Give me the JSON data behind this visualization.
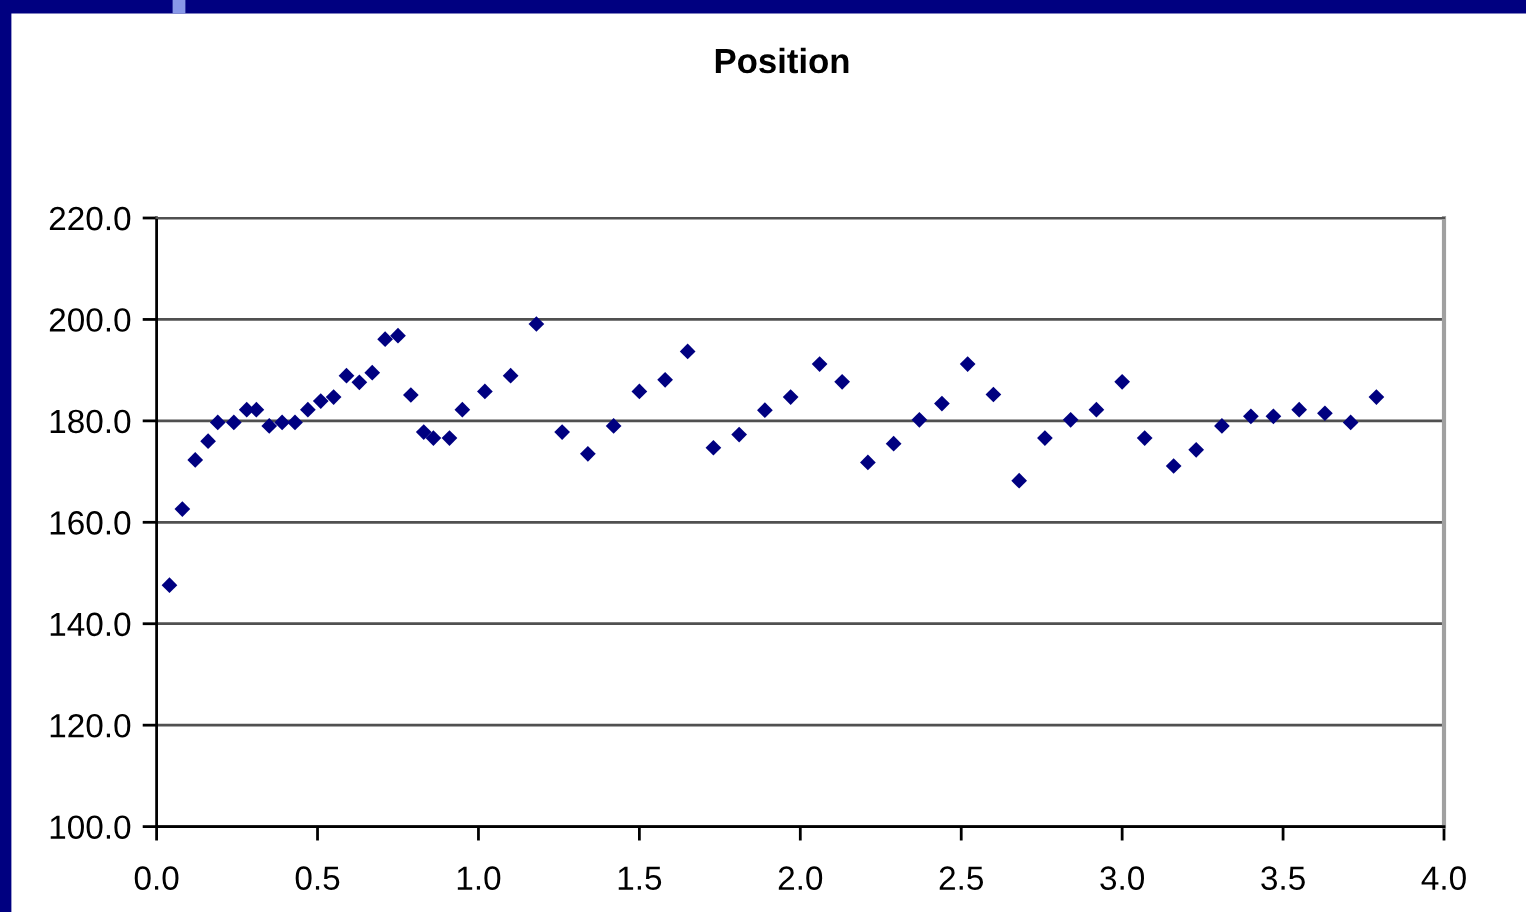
{
  "chart_data": {
    "type": "scatter",
    "title": "Position",
    "x": [
      0.04,
      0.08,
      0.12,
      0.16,
      0.19,
      0.24,
      0.28,
      0.31,
      0.35,
      0.39,
      0.43,
      0.47,
      0.51,
      0.55,
      0.59,
      0.63,
      0.67,
      0.71,
      0.75,
      0.79,
      0.83,
      0.86,
      0.91,
      0.95,
      1.02,
      1.1,
      1.18,
      1.26,
      1.34,
      1.42,
      1.5,
      1.58,
      1.65,
      1.73,
      1.81,
      1.89,
      1.97,
      2.06,
      2.13,
      2.21,
      2.29,
      2.37,
      2.44,
      2.52,
      2.6,
      2.68,
      2.76,
      2.84,
      2.92,
      3.0,
      3.07,
      3.16,
      3.23,
      3.31,
      3.4,
      3.47,
      3.55,
      3.63,
      3.71,
      3.79
    ],
    "series": [
      {
        "color": "#000080",
        "values": [
          147.6,
          162.6,
          172.3,
          176.0,
          179.7,
          179.7,
          182.2,
          182.2,
          179.0,
          179.7,
          179.7,
          182.2,
          183.9,
          184.7,
          188.9,
          187.6,
          189.5,
          196.1,
          196.8,
          185.1,
          177.8,
          176.6,
          176.6,
          182.2,
          185.8,
          188.9,
          199.1,
          177.8,
          173.5,
          179.0,
          185.8,
          188.1,
          193.7,
          174.7,
          177.3,
          182.1,
          184.7,
          191.2,
          187.7,
          171.8,
          175.5,
          180.2,
          183.4,
          191.2,
          185.2,
          168.2,
          176.6,
          180.2,
          182.2,
          187.7,
          176.6,
          171.1,
          174.3,
          179.0,
          180.9,
          180.9,
          182.2,
          181.5,
          179.7,
          184.7
        ]
      }
    ],
    "xlim": [
      0,
      4
    ],
    "xticks": [
      {
        "value": 0,
        "label": "0.0"
      },
      {
        "value": 0.5,
        "label": "0.5"
      },
      {
        "value": 1,
        "label": "1.0"
      },
      {
        "value": 1.5,
        "label": "1.5"
      },
      {
        "value": 2,
        "label": "2.0"
      },
      {
        "value": 2.5,
        "label": "2.5"
      },
      {
        "value": 3,
        "label": "3.0"
      },
      {
        "value": 3.5,
        "label": "3.5"
      },
      {
        "value": 4,
        "label": "4.0"
      }
    ],
    "ylim": [
      100,
      220
    ],
    "yticks": [
      {
        "value": 100,
        "label": "100.0"
      },
      {
        "value": 120,
        "label": "120.0"
      },
      {
        "value": 140,
        "label": "140.0"
      },
      {
        "value": 160,
        "label": "160.0"
      },
      {
        "value": 180,
        "label": "180.0"
      },
      {
        "value": 200,
        "label": "200.0"
      },
      {
        "value": 220,
        "label": "220.0"
      }
    ],
    "grid": "y",
    "marker": "diamond"
  }
}
